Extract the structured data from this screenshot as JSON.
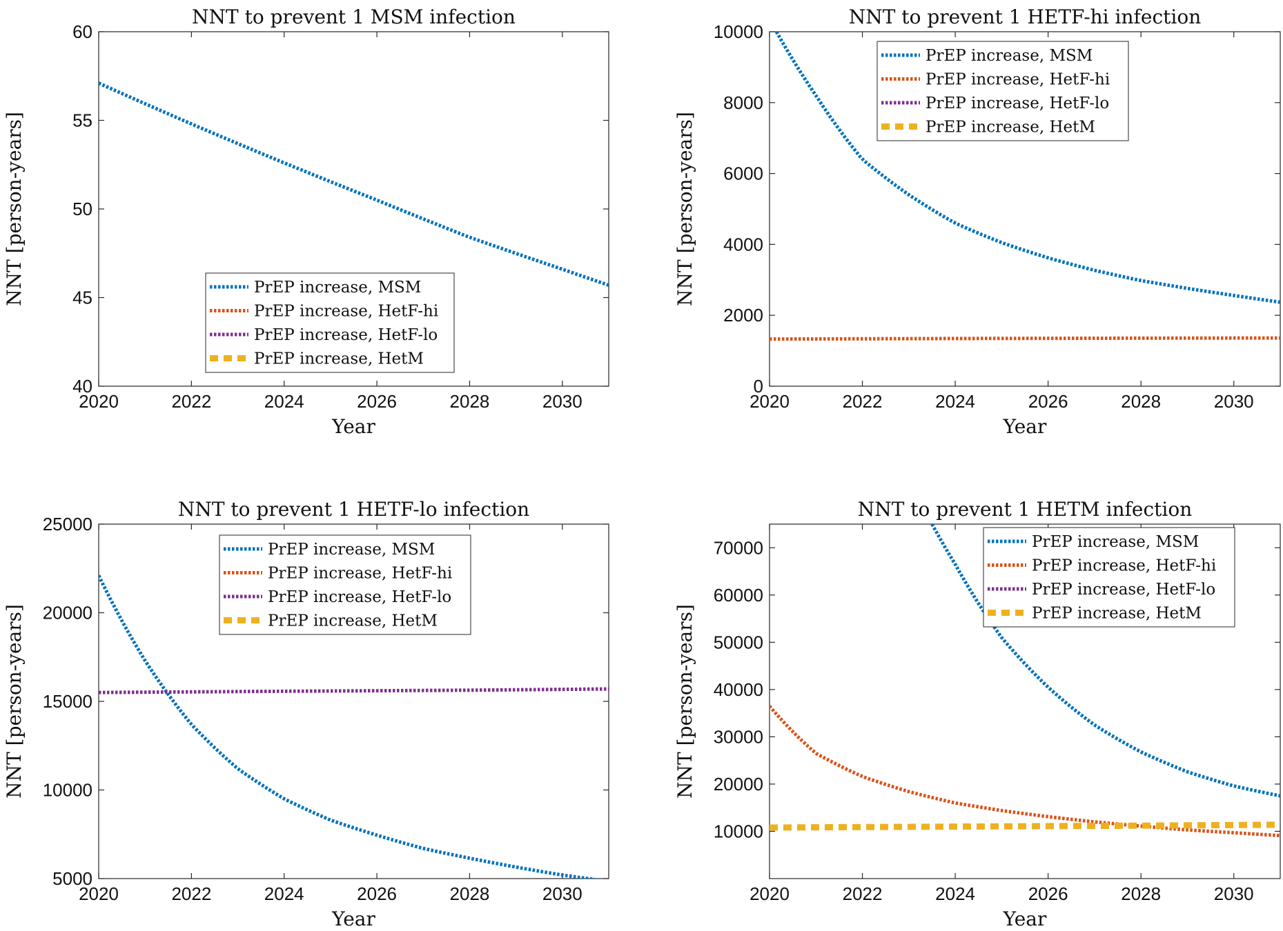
{
  "chart_data": [
    {
      "type": "line",
      "title": "NNT to prevent 1 MSM infection",
      "xlabel": "Year",
      "ylabel": "NNT [person-years]",
      "xlim": [
        2020,
        2031
      ],
      "ylim": [
        40,
        60
      ],
      "xticks": [
        2020,
        2022,
        2024,
        2026,
        2028,
        2030
      ],
      "yticks": [
        40,
        45,
        50,
        55,
        60
      ],
      "legend_position": "lower-center",
      "series": [
        {
          "name": "PrEP increase, MSM",
          "color": "#0072BD",
          "style": "dotted",
          "x": [
            2020,
            2022,
            2024,
            2026,
            2028,
            2030,
            2031
          ],
          "values": [
            57.1,
            54.8,
            52.6,
            50.5,
            48.4,
            46.6,
            45.7
          ]
        },
        {
          "name": "PrEP increase, HetF-hi",
          "color": "#D95319",
          "style": "dotted",
          "x": [],
          "values": []
        },
        {
          "name": "PrEP increase, HetF-lo",
          "color": "#7E2F8E",
          "style": "dotted",
          "x": [],
          "values": []
        },
        {
          "name": "PrEP increase, HetM",
          "color": "#EDB120",
          "style": "dashed",
          "x": [],
          "values": []
        }
      ]
    },
    {
      "type": "line",
      "title": "NNT to prevent 1 HETF-hi infection",
      "xlabel": "Year",
      "ylabel": "NNT [person-years]",
      "xlim": [
        2020,
        2031
      ],
      "ylim": [
        0,
        10000
      ],
      "xticks": [
        2020,
        2022,
        2024,
        2026,
        2028,
        2030
      ],
      "yticks": [
        0,
        2000,
        4000,
        6000,
        8000,
        10000
      ],
      "legend_position": "top-center",
      "series": [
        {
          "name": "PrEP increase, MSM",
          "color": "#0072BD",
          "style": "dotted",
          "x": [
            2020.15,
            2021,
            2022,
            2023,
            2024,
            2025,
            2026,
            2027,
            2028,
            2029,
            2030,
            2031
          ],
          "values": [
            10000,
            8200,
            6400,
            5400,
            4600,
            4050,
            3620,
            3270,
            2980,
            2760,
            2560,
            2370
          ]
        },
        {
          "name": "PrEP increase, HetF-hi",
          "color": "#D95319",
          "style": "dotted",
          "x": [
            2020,
            2024,
            2028,
            2031
          ],
          "values": [
            1330,
            1345,
            1355,
            1360
          ]
        },
        {
          "name": "PrEP increase, HetF-lo",
          "color": "#7E2F8E",
          "style": "dotted",
          "x": [],
          "values": []
        },
        {
          "name": "PrEP increase, HetM",
          "color": "#EDB120",
          "style": "dashed",
          "x": [],
          "values": []
        }
      ]
    },
    {
      "type": "line",
      "title": "NNT to prevent 1 HETF-lo infection",
      "xlabel": "Year",
      "ylabel": "NNT [person-years]",
      "xlim": [
        2020,
        2031
      ],
      "ylim": [
        5000,
        25000
      ],
      "xticks": [
        2020,
        2022,
        2024,
        2026,
        2028,
        2030
      ],
      "yticks": [
        5000,
        10000,
        15000,
        20000,
        25000
      ],
      "legend_position": "top-center",
      "series": [
        {
          "name": "PrEP increase, MSM",
          "color": "#0072BD",
          "style": "dotted",
          "x": [
            2020,
            2021,
            2022,
            2023,
            2024,
            2025,
            2026,
            2027,
            2028,
            2029,
            2030,
            2030.7
          ],
          "values": [
            22100,
            17300,
            13700,
            11200,
            9500,
            8300,
            7450,
            6700,
            6150,
            5650,
            5200,
            4950
          ]
        },
        {
          "name": "PrEP increase, HetF-hi",
          "color": "#D95319",
          "style": "dotted",
          "x": [],
          "values": []
        },
        {
          "name": "PrEP increase, HetF-lo",
          "color": "#7E2F8E",
          "style": "dotted",
          "x": [
            2020,
            2024,
            2028,
            2031
          ],
          "values": [
            15500,
            15570,
            15630,
            15700
          ]
        },
        {
          "name": "PrEP increase, HetM",
          "color": "#EDB120",
          "style": "dashed",
          "x": [],
          "values": []
        }
      ]
    },
    {
      "type": "line",
      "title": "NNT to prevent 1 HETM infection",
      "xlabel": "Year",
      "ylabel": "NNT [person-years]",
      "xlim": [
        2020,
        2031
      ],
      "ylim": [
        0,
        75000
      ],
      "xticks": [
        2020,
        2022,
        2024,
        2026,
        2028,
        2030
      ],
      "yticks": [
        10000,
        20000,
        30000,
        40000,
        50000,
        60000,
        70000
      ],
      "legend_position": "top-right",
      "series": [
        {
          "name": "PrEP increase, MSM",
          "color": "#0072BD",
          "style": "dotted",
          "x": [
            2023.5,
            2024,
            2025,
            2026,
            2027,
            2028,
            2029,
            2030,
            2031
          ],
          "values": [
            75000,
            66500,
            51000,
            40500,
            32500,
            26800,
            22600,
            19600,
            17500
          ]
        },
        {
          "name": "PrEP increase, HetF-hi",
          "color": "#D95319",
          "style": "dotted",
          "x": [
            2020,
            2021,
            2022,
            2023,
            2024,
            2025,
            2026,
            2027,
            2028,
            2029,
            2030,
            2031
          ],
          "values": [
            36500,
            26500,
            21600,
            18400,
            16000,
            14400,
            13100,
            12000,
            11100,
            10300,
            9700,
            9100
          ]
        },
        {
          "name": "PrEP increase, HetF-lo",
          "color": "#7E2F8E",
          "style": "dotted",
          "x": [],
          "values": []
        },
        {
          "name": "PrEP increase, HetM",
          "color": "#EDB120",
          "style": "dashed",
          "x": [
            2020,
            2024,
            2028,
            2031
          ],
          "values": [
            10800,
            11000,
            11200,
            11400
          ]
        }
      ]
    }
  ]
}
